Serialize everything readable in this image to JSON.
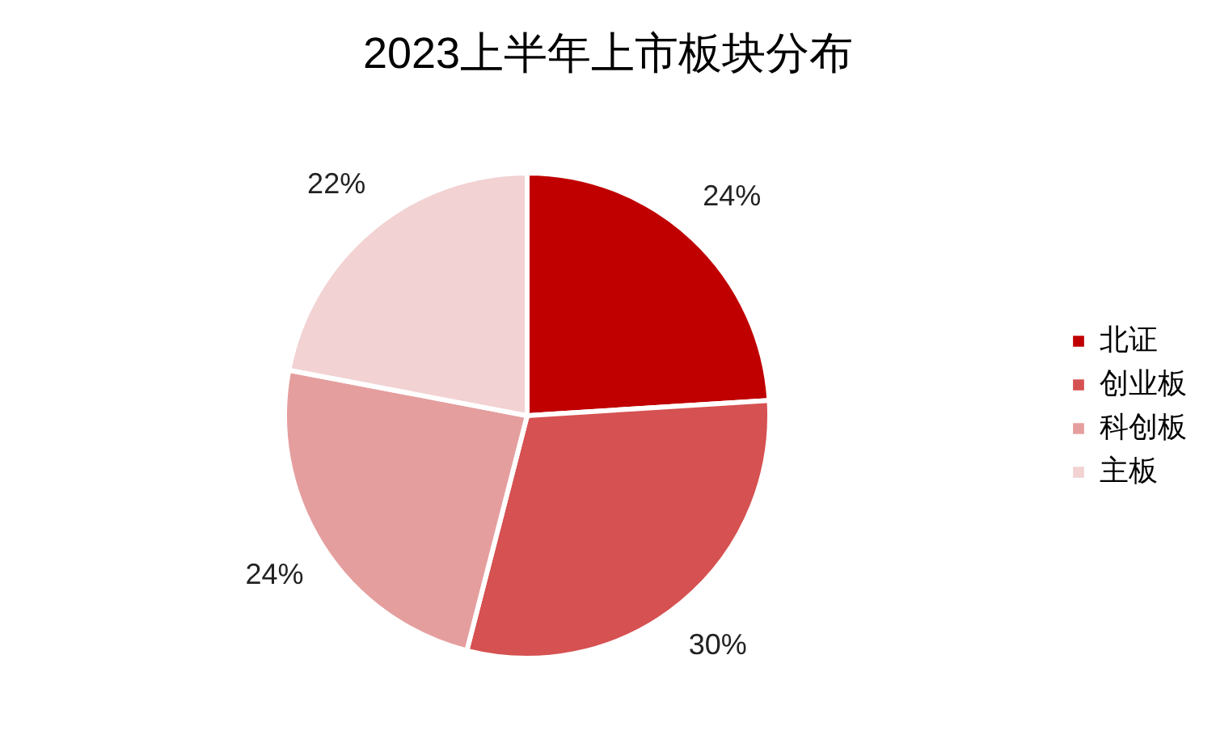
{
  "chart_data": {
    "type": "pie",
    "title": "2023上半年上市板块分布",
    "categories": [
      "北证",
      "创业板",
      "科创板",
      "主板"
    ],
    "values": [
      24,
      30,
      24,
      22
    ],
    "colors": [
      "#c00000",
      "#d65151",
      "#e59e9e",
      "#f2d2d2"
    ],
    "value_labels": [
      "24%",
      "30%",
      "24%",
      "22%"
    ],
    "legend": "right"
  }
}
